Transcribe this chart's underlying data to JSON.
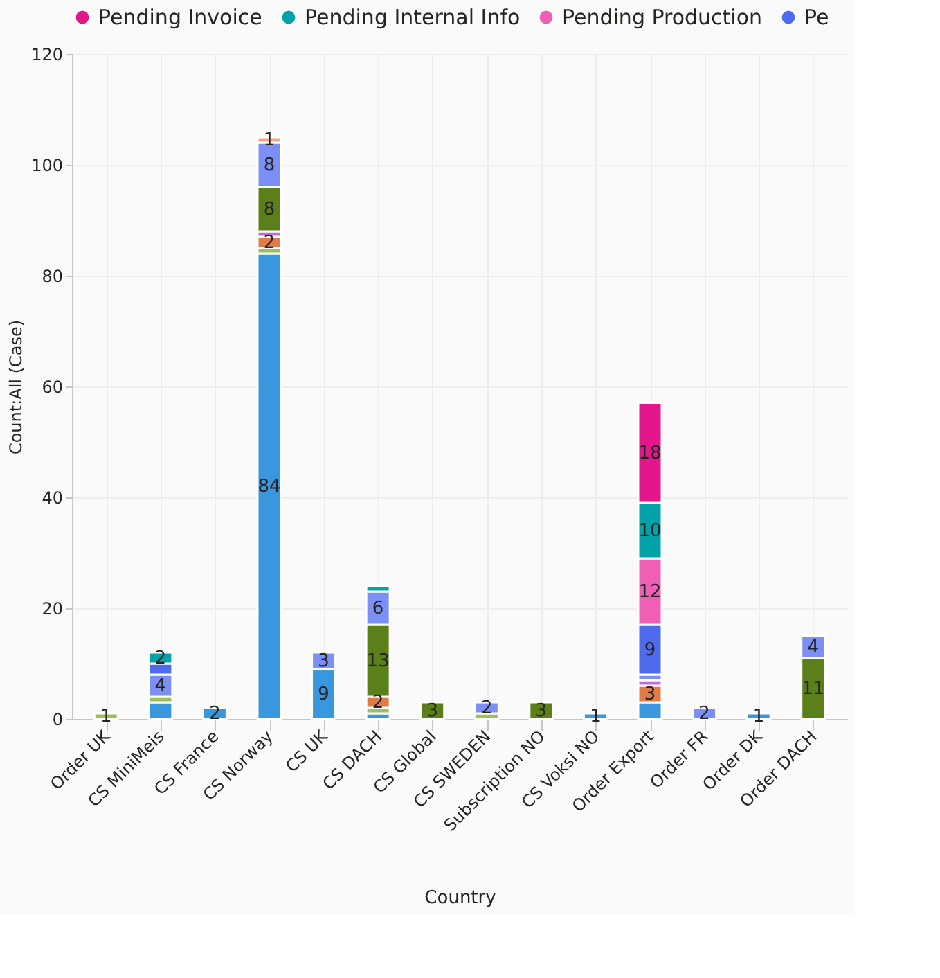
{
  "chart_data": {
    "type": "bar",
    "stacked": true,
    "xlabel": "Country",
    "ylabel": "Count:All (Case)",
    "categories": [
      "Order UK",
      "CS MiniMeis",
      "CS France",
      "CS Norway",
      "CS UK",
      "CS DACH",
      "CS Global",
      "CS SWEDEN",
      "Subscription NO",
      "CS Voksi NO",
      "Order Export",
      "Order FR",
      "Order DK",
      "Order DACH"
    ],
    "series": [
      {
        "color": "#3a96dd",
        "values": [
          null,
          3,
          2,
          84,
          9,
          1,
          null,
          null,
          null,
          1,
          3,
          null,
          1,
          null
        ],
        "value_labels": [
          null,
          null,
          "2",
          "84",
          "9",
          null,
          null,
          null,
          null,
          "1",
          null,
          null,
          "1",
          null
        ]
      },
      {
        "color": "#9bbf5c",
        "values": [
          1,
          1,
          null,
          1,
          null,
          1,
          null,
          1,
          null,
          null,
          null,
          null,
          null,
          null
        ],
        "value_labels": [
          "1",
          null,
          null,
          null,
          null,
          null,
          null,
          null,
          null,
          null,
          null,
          null,
          null,
          null
        ]
      },
      {
        "color": "#e07b47",
        "values": [
          null,
          null,
          null,
          2,
          null,
          2,
          null,
          null,
          null,
          null,
          3,
          null,
          null,
          null
        ],
        "value_labels": [
          null,
          null,
          null,
          "2",
          null,
          "2",
          null,
          null,
          null,
          null,
          "3",
          null,
          null,
          null
        ]
      },
      {
        "color": "#c56bd6",
        "values": [
          null,
          null,
          null,
          1,
          null,
          null,
          null,
          null,
          null,
          null,
          1,
          null,
          null,
          null
        ],
        "value_labels": [
          null,
          null,
          null,
          null,
          null,
          null,
          null,
          null,
          null,
          null,
          null,
          null,
          null,
          null
        ]
      },
      {
        "color": "#5b7f19",
        "values": [
          null,
          null,
          null,
          8,
          null,
          13,
          3,
          null,
          3,
          null,
          null,
          null,
          null,
          11
        ],
        "value_labels": [
          null,
          null,
          null,
          "8",
          null,
          "13",
          "3",
          null,
          "3",
          null,
          null,
          null,
          null,
          "11"
        ]
      },
      {
        "color": "#7b8ff5",
        "values": [
          null,
          4,
          null,
          8,
          3,
          6,
          null,
          2,
          null,
          null,
          1,
          2,
          null,
          4
        ],
        "value_labels": [
          null,
          "4",
          null,
          "8",
          "3",
          "6",
          null,
          "2",
          null,
          null,
          null,
          "2",
          null,
          "4"
        ]
      },
      {
        "name": "Pe",
        "color": "#4f6bed",
        "values": [
          null,
          2,
          null,
          null,
          null,
          null,
          null,
          null,
          null,
          null,
          9,
          null,
          null,
          null
        ],
        "value_labels": [
          null,
          null,
          null,
          null,
          null,
          null,
          null,
          null,
          null,
          null,
          "9",
          null,
          null,
          null
        ]
      },
      {
        "name": "Pending Production",
        "color": "#ef5fb5",
        "values": [
          null,
          null,
          null,
          null,
          null,
          null,
          null,
          null,
          null,
          null,
          12,
          null,
          null,
          null
        ],
        "value_labels": [
          null,
          null,
          null,
          null,
          null,
          null,
          null,
          null,
          null,
          null,
          "12",
          null,
          null,
          null
        ]
      },
      {
        "name": "Pending Internal Info",
        "color": "#02a3a8",
        "values": [
          null,
          2,
          null,
          null,
          null,
          1,
          null,
          null,
          null,
          null,
          10,
          null,
          null,
          null
        ],
        "value_labels": [
          null,
          "2",
          null,
          null,
          null,
          null,
          null,
          null,
          null,
          null,
          "10",
          null,
          null,
          null
        ]
      },
      {
        "name": "Pending Invoice",
        "color": "#e3168b",
        "values": [
          null,
          null,
          null,
          null,
          null,
          null,
          null,
          null,
          null,
          null,
          18,
          null,
          null,
          null
        ],
        "value_labels": [
          null,
          null,
          null,
          null,
          null,
          null,
          null,
          null,
          null,
          null,
          "18",
          null,
          null,
          null
        ]
      },
      {
        "color": "#f0a782",
        "values": [
          null,
          null,
          null,
          1,
          null,
          null,
          null,
          null,
          null,
          null,
          null,
          null,
          null,
          null
        ],
        "value_labels": [
          null,
          null,
          null,
          "1",
          null,
          null,
          null,
          null,
          null,
          null,
          null,
          null,
          null,
          null
        ]
      }
    ],
    "ylim": [
      0,
      120
    ],
    "yticks": [
      0,
      20,
      40,
      60,
      80,
      100,
      120
    ],
    "grid": true,
    "legend": "top"
  }
}
